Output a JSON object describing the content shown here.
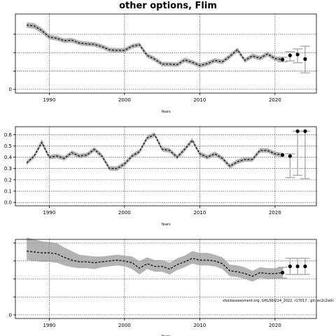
{
  "figure": {
    "title": "other options, Flim",
    "annotation": "stockassessment.org, GHL56t214_2022, r17017 , git: ec2c2a0c"
  },
  "colors": {
    "band": "#9a9a9a",
    "estimate_line": "#1a1a1a",
    "projection_point": "#000000",
    "error_bar": "#aaaaaa"
  },
  "chart_data": [
    {
      "type": "line",
      "title": "",
      "xlabel": "Years",
      "ylabel": "",
      "xlim": [
        1985.5,
        2025.5
      ],
      "ylim": [
        -400,
        8200
      ],
      "x_ticks": [
        1990,
        2000,
        2010,
        2020
      ],
      "y_ticks": [
        0,
        2000,
        4000,
        6000
      ],
      "y_tick_labels": [
        "0",
        "",
        "",
        ""
      ],
      "grid": true,
      "years": [
        1987,
        1988,
        1989,
        1990,
        1991,
        1992,
        1993,
        1994,
        1995,
        1996,
        1997,
        1998,
        1999,
        2000,
        2001,
        2002,
        2003,
        2004,
        2005,
        2006,
        2007,
        2008,
        2009,
        2010,
        2011,
        2012,
        2013,
        2014,
        2015,
        2016,
        2017,
        2018,
        2019,
        2020,
        2021
      ],
      "estimate": [
        7000,
        6900,
        6400,
        5700,
        5550,
        5300,
        5350,
        5050,
        4950,
        4900,
        4650,
        4300,
        4250,
        4250,
        4700,
        4850,
        3700,
        3300,
        2750,
        2750,
        2700,
        3200,
        2950,
        2600,
        2800,
        3150,
        3000,
        3600,
        4300,
        3150,
        3650,
        3400,
        3850,
        3350,
        3250
      ],
      "lower": [
        6700,
        6600,
        6100,
        5450,
        5300,
        5050,
        5100,
        4800,
        4700,
        4650,
        4400,
        4050,
        4000,
        4000,
        4450,
        4600,
        3450,
        3050,
        2500,
        2500,
        2450,
        2950,
        2700,
        2350,
        2550,
        2900,
        2750,
        3350,
        4050,
        2900,
        3400,
        3150,
        3600,
        3100,
        3000
      ],
      "upper": [
        7300,
        7200,
        6700,
        5950,
        5800,
        5550,
        5600,
        5300,
        5200,
        5150,
        4900,
        4550,
        4500,
        4500,
        4950,
        5100,
        3950,
        3550,
        3000,
        3000,
        2950,
        3450,
        3200,
        2850,
        3050,
        3400,
        3250,
        3850,
        4550,
        3400,
        3900,
        3650,
        4100,
        3600,
        3500
      ],
      "projection": {
        "years": [
          2021,
          2022,
          2023,
          2024
        ],
        "values": [
          3250,
          3700,
          3800,
          3300
        ],
        "lower": [
          3000,
          3100,
          2900,
          1800
        ],
        "upper": [
          3500,
          4100,
          4400,
          4700
        ]
      }
    },
    {
      "type": "line",
      "title": "",
      "xlabel": "Years",
      "ylabel": "",
      "xlim": [
        1985.5,
        2025.5
      ],
      "ylim": [
        -0.03,
        0.67
      ],
      "x_ticks": [
        1990,
        2000,
        2010,
        2020
      ],
      "y_ticks": [
        0.0,
        0.1,
        0.2,
        0.3,
        0.4,
        0.5,
        0.6
      ],
      "y_tick_labels": [
        "0.0",
        "0.1",
        "0.2",
        "0.3",
        "0.4",
        "0.5",
        "0.6"
      ],
      "grid": true,
      "years": [
        1987,
        1988,
        1989,
        1990,
        1991,
        1992,
        1993,
        1994,
        1995,
        1996,
        1997,
        1998,
        1999,
        2000,
        2001,
        2002,
        2003,
        2004,
        2005,
        2006,
        2007,
        2008,
        2009,
        2010,
        2011,
        2012,
        2013,
        2014,
        2015,
        2016,
        2017,
        2018,
        2019,
        2020,
        2021
      ],
      "estimate": [
        0.35,
        0.41,
        0.53,
        0.4,
        0.41,
        0.39,
        0.44,
        0.41,
        0.42,
        0.47,
        0.41,
        0.3,
        0.3,
        0.34,
        0.41,
        0.45,
        0.57,
        0.6,
        0.47,
        0.46,
        0.4,
        0.47,
        0.55,
        0.43,
        0.4,
        0.43,
        0.39,
        0.32,
        0.36,
        0.38,
        0.38,
        0.46,
        0.46,
        0.43,
        0.42
      ],
      "lower": [
        0.33,
        0.39,
        0.51,
        0.38,
        0.39,
        0.37,
        0.42,
        0.39,
        0.4,
        0.45,
        0.39,
        0.28,
        0.28,
        0.32,
        0.39,
        0.43,
        0.55,
        0.58,
        0.45,
        0.44,
        0.38,
        0.45,
        0.53,
        0.41,
        0.38,
        0.41,
        0.37,
        0.3,
        0.34,
        0.36,
        0.36,
        0.44,
        0.44,
        0.41,
        0.4
      ],
      "upper": [
        0.37,
        0.43,
        0.56,
        0.42,
        0.43,
        0.41,
        0.46,
        0.43,
        0.44,
        0.49,
        0.43,
        0.32,
        0.32,
        0.36,
        0.43,
        0.47,
        0.59,
        0.62,
        0.49,
        0.48,
        0.42,
        0.49,
        0.57,
        0.45,
        0.42,
        0.45,
        0.41,
        0.34,
        0.38,
        0.4,
        0.4,
        0.48,
        0.48,
        0.45,
        0.44
      ],
      "projection": {
        "years": [
          2021,
          2022,
          2023,
          2024
        ],
        "values": [
          0.42,
          0.41,
          0.63,
          0.63
        ],
        "lower": [
          0.42,
          0.22,
          0.24,
          0.21
        ],
        "upper": [
          0.42,
          0.43,
          0.63,
          0.63
        ]
      }
    },
    {
      "type": "line",
      "title": "",
      "xlabel": "Years",
      "ylabel": "",
      "xlim": [
        1985.5,
        2025.5
      ],
      "ylim": [
        -200,
        4200
      ],
      "x_ticks": [
        1990,
        2000,
        2010,
        2020
      ],
      "y_ticks": [
        0,
        1000,
        2000,
        3000,
        4000
      ],
      "y_tick_labels": [
        "0",
        "",
        "",
        "",
        ""
      ],
      "grid": true,
      "years": [
        1987,
        1988,
        1989,
        1990,
        1991,
        1992,
        1993,
        1994,
        1995,
        1996,
        1997,
        1998,
        1999,
        2000,
        2001,
        2002,
        2003,
        2004,
        2005,
        2006,
        2007,
        2008,
        2009,
        2010,
        2011,
        2012,
        2013,
        2014,
        2015,
        2016,
        2017,
        2018,
        2019,
        2020,
        2021
      ],
      "estimate": [
        3550,
        3500,
        3450,
        3450,
        3400,
        3200,
        3050,
        2950,
        2950,
        2900,
        2950,
        3000,
        3050,
        3000,
        2900,
        2600,
        2850,
        2700,
        2700,
        2550,
        2800,
        2950,
        3150,
        3050,
        3050,
        3000,
        2850,
        2450,
        2400,
        2300,
        2150,
        2350,
        2300,
        2300,
        2350
      ],
      "lower": [
        3050,
        3000,
        2950,
        2950,
        2900,
        2750,
        2650,
        2600,
        2600,
        2550,
        2650,
        2700,
        2750,
        2700,
        2550,
        2250,
        2550,
        2400,
        2400,
        2250,
        2500,
        2650,
        2850,
        2750,
        2750,
        2700,
        2550,
        2150,
        2100,
        2000,
        1850,
        2050,
        2000,
        2000,
        2050
      ],
      "upper": [
        4300,
        4200,
        4100,
        4050,
        4000,
        3750,
        3550,
        3350,
        3300,
        3250,
        3250,
        3300,
        3350,
        3300,
        3250,
        3000,
        3200,
        3050,
        3050,
        2900,
        3150,
        3300,
        3550,
        3450,
        3450,
        3350,
        3200,
        2800,
        2750,
        2650,
        2450,
        2650,
        2600,
        2600,
        2650
      ],
      "projection": {
        "years": [
          2021,
          2022,
          2023,
          2024
        ],
        "values": [
          2350,
          2700,
          2700,
          2700
        ],
        "lower": [
          2050,
          2250,
          2250,
          2250
        ],
        "upper": [
          2650,
          3150,
          3150,
          3150
        ]
      }
    }
  ]
}
